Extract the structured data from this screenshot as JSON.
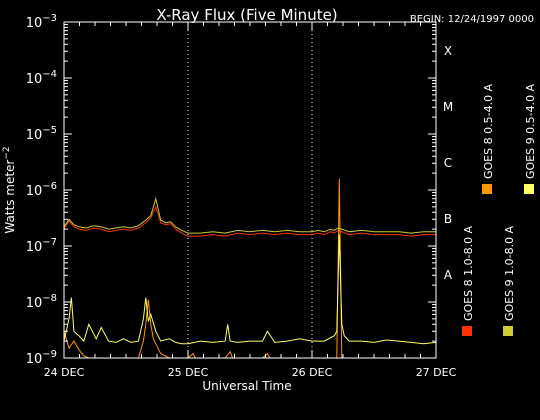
{
  "chart_data": {
    "type": "line",
    "title": "X-Ray Flux (Five Minute)",
    "begin_label": "BEGIN: 12/24/1997 0000",
    "xlabel": "Universal Time",
    "ylabel": "Watts meter^-2",
    "y_scale": "log",
    "ylim": [
      1e-09,
      0.001
    ],
    "x_unit": "days since 24 DEC 1997 00:00 UT",
    "xlim": [
      0,
      3
    ],
    "x_ticks": [
      {
        "x": 0,
        "label": "24 DEC"
      },
      {
        "x": 1,
        "label": "25 DEC"
      },
      {
        "x": 2,
        "label": "26 DEC"
      },
      {
        "x": 3,
        "label": "27 DEC"
      }
    ],
    "y_tick_exponents": [
      -9,
      -8,
      -7,
      -6,
      -5,
      -4,
      -3
    ],
    "flare_classes": [
      {
        "label": "A",
        "exp": -8
      },
      {
        "label": "B",
        "exp": -7
      },
      {
        "label": "C",
        "exp": -6
      },
      {
        "label": "M",
        "exp": -5
      },
      {
        "label": "X",
        "exp": -4
      }
    ],
    "grid": "dotted vertical lines at day boundaries",
    "legend": "right side, vertical",
    "series": [
      {
        "name": "GOES 8 1.0-8.0 A",
        "color": "#ff3300",
        "x": [
          0,
          0.04,
          0.08,
          0.12,
          0.18,
          0.24,
          0.3,
          0.36,
          0.42,
          0.48,
          0.54,
          0.6,
          0.66,
          0.7,
          0.74,
          0.78,
          0.82,
          0.86,
          0.9,
          0.95,
          1.0,
          1.1,
          1.2,
          1.3,
          1.4,
          1.5,
          1.6,
          1.7,
          1.8,
          1.9,
          2.0,
          2.05,
          2.1,
          2.15,
          2.18,
          2.21,
          2.24,
          2.3,
          2.4,
          2.5,
          2.6,
          2.7,
          2.8,
          2.9,
          3.0
        ],
        "values": [
          2e-07,
          2.8e-07,
          2.2e-07,
          2e-07,
          1.9e-07,
          2.1e-07,
          2e-07,
          1.8e-07,
          1.9e-07,
          2e-07,
          1.9e-07,
          2.1e-07,
          2.6e-07,
          3.2e-07,
          5e-07,
          2.6e-07,
          2.4e-07,
          2.5e-07,
          2e-07,
          1.7e-07,
          1.5e-07,
          1.5e-07,
          1.6e-07,
          1.5e-07,
          1.7e-07,
          1.6e-07,
          1.7e-07,
          1.6e-07,
          1.7e-07,
          1.6e-07,
          1.6e-07,
          1.7e-07,
          1.6e-07,
          1.8e-07,
          1.7e-07,
          1.9e-07,
          1.8e-07,
          1.6e-07,
          1.7e-07,
          1.6e-07,
          1.6e-07,
          1.6e-07,
          1.5e-07,
          1.6e-07,
          1.6e-07
        ]
      },
      {
        "name": "GOES 8 0.5-4.0 A",
        "color": "#ff9900",
        "x": [
          0,
          0.04,
          0.08,
          0.12,
          0.16,
          0.2,
          0.26,
          0.32,
          0.36,
          0.6,
          0.64,
          0.66,
          0.68,
          0.7,
          0.72,
          0.74,
          0.78,
          0.85,
          0.95,
          1.0,
          1.04,
          1.06,
          1.3,
          1.34,
          1.36,
          1.6,
          1.64,
          1.66,
          2.0,
          2.2,
          2.22,
          2.24,
          2.4,
          3.0
        ],
        "values": [
          3e-09,
          1.5e-09,
          2e-09,
          1.4e-09,
          1.1e-09,
          1e-09,
          1e-09,
          1e-09,
          1e-09,
          1e-09,
          2e-09,
          4e-09,
          1.1e-08,
          4e-09,
          2.2e-09,
          1.8e-09,
          1.2e-09,
          1e-09,
          1e-09,
          1e-09,
          1.2e-09,
          1e-09,
          1e-09,
          1.3e-09,
          1e-09,
          1e-09,
          1.2e-09,
          1e-09,
          1e-09,
          1e-09,
          1.6e-06,
          1e-09,
          1e-09,
          1e-09
        ]
      },
      {
        "name": "GOES 9 1.0-8.0 A",
        "color": "#cccc33",
        "x": [
          0,
          0.04,
          0.08,
          0.12,
          0.18,
          0.24,
          0.3,
          0.36,
          0.42,
          0.48,
          0.54,
          0.6,
          0.66,
          0.7,
          0.74,
          0.78,
          0.82,
          0.86,
          0.9,
          0.95,
          1.0,
          1.1,
          1.2,
          1.3,
          1.4,
          1.5,
          1.6,
          1.7,
          1.8,
          1.9,
          2.0,
          2.05,
          2.1,
          2.15,
          2.18,
          2.21,
          2.24,
          2.3,
          2.4,
          2.5,
          2.6,
          2.7,
          2.8,
          2.9,
          3.0
        ],
        "values": [
          2.2e-07,
          3e-07,
          2.4e-07,
          2.2e-07,
          2.1e-07,
          2.3e-07,
          2.2e-07,
          2e-07,
          2.1e-07,
          2.2e-07,
          2.1e-07,
          2.3e-07,
          2.9e-07,
          3.5e-07,
          7e-07,
          2.9e-07,
          2.6e-07,
          2.7e-07,
          2.2e-07,
          1.9e-07,
          1.7e-07,
          1.7e-07,
          1.8e-07,
          1.7e-07,
          1.9e-07,
          1.8e-07,
          1.9e-07,
          1.8e-07,
          1.9e-07,
          1.8e-07,
          1.8e-07,
          1.9e-07,
          1.8e-07,
          2e-07,
          1.9e-07,
          2.1e-07,
          2e-07,
          1.8e-07,
          1.9e-07,
          1.8e-07,
          1.8e-07,
          1.8e-07,
          1.7e-07,
          1.8e-07,
          1.8e-07
        ]
      },
      {
        "name": "GOES 9 0.5-4.0 A",
        "color": "#ffff66",
        "x": [
          0,
          0.04,
          0.06,
          0.08,
          0.12,
          0.16,
          0.2,
          0.26,
          0.3,
          0.36,
          0.42,
          0.48,
          0.54,
          0.6,
          0.64,
          0.66,
          0.68,
          0.7,
          0.74,
          0.78,
          0.85,
          0.9,
          0.95,
          1.0,
          1.1,
          1.2,
          1.3,
          1.32,
          1.34,
          1.4,
          1.5,
          1.6,
          1.64,
          1.7,
          1.8,
          1.9,
          2.0,
          2.1,
          2.18,
          2.2,
          2.22,
          2.24,
          2.26,
          2.3,
          2.4,
          2.5,
          2.6,
          2.7,
          2.8,
          2.9,
          3.0
        ],
        "values": [
          2e-09,
          5e-09,
          1.2e-08,
          3e-09,
          2.5e-09,
          2e-09,
          4e-09,
          2.2e-09,
          3.5e-09,
          2e-09,
          1.9e-09,
          2.2e-09,
          1.9e-09,
          2e-09,
          5e-09,
          1.2e-08,
          4.5e-09,
          6e-09,
          3e-09,
          2e-09,
          2.2e-09,
          1.9e-09,
          1.8e-09,
          1.8e-09,
          2e-09,
          1.9e-09,
          2e-09,
          4e-09,
          2e-09,
          1.9e-09,
          2e-09,
          2e-09,
          3e-09,
          1.9e-09,
          2e-09,
          2.2e-09,
          2e-09,
          2e-09,
          2.5e-09,
          3e-09,
          1.6e-07,
          4e-09,
          2.5e-09,
          2e-09,
          2e-09,
          1.9e-09,
          2.1e-09,
          2e-09,
          1.9e-09,
          1.8e-09,
          1.9e-09
        ]
      }
    ]
  }
}
